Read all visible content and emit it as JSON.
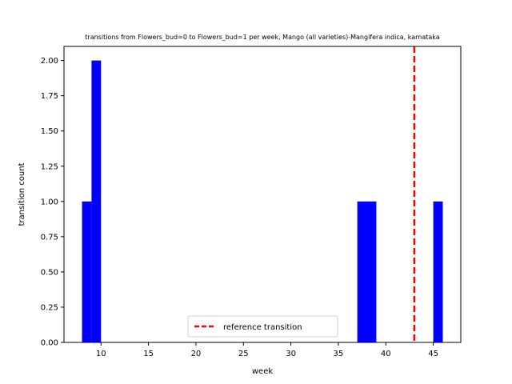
{
  "chart_data": {
    "type": "bar",
    "title": "transitions from Flowers_bud=0 to Flowers_bud=1 per week, Mango (all varieties)-Mangifera indica, karnataka",
    "xlabel": "week",
    "ylabel": "transition count",
    "xlim": [
      6.1,
      47.9
    ],
    "ylim": [
      0,
      2.1
    ],
    "xticks": [
      10,
      15,
      20,
      25,
      30,
      35,
      40,
      45
    ],
    "yticks": [
      0.0,
      0.25,
      0.5,
      0.75,
      1.0,
      1.25,
      1.5,
      1.75,
      2.0
    ],
    "bar_width": 1,
    "bars": [
      {
        "x": 8,
        "value": 1
      },
      {
        "x": 9,
        "value": 2
      },
      {
        "x": 37,
        "value": 1
      },
      {
        "x": 38,
        "value": 1
      },
      {
        "x": 45,
        "value": 1
      }
    ],
    "bar_color": "#0000ff",
    "reference_line": {
      "x": 43,
      "label": "reference transition",
      "color": "#ff0000",
      "style": "dashed"
    },
    "legend": {
      "placement": "lower center",
      "entries": [
        "reference transition"
      ]
    },
    "grid": false
  }
}
